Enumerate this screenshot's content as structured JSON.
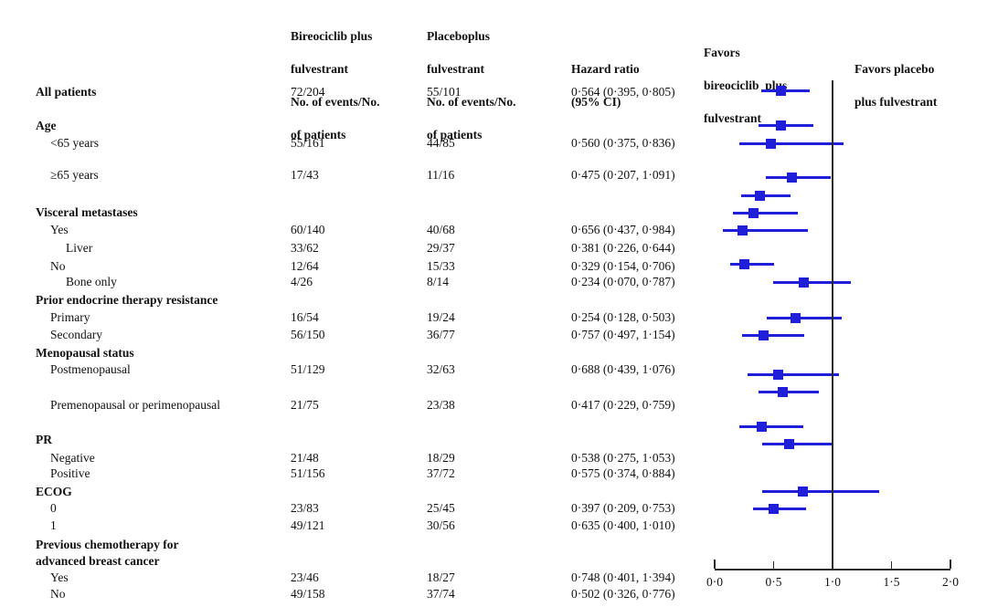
{
  "header": {
    "col_bireociclib": {
      "line1": "Bireociclib plus",
      "line2": "fulvestrant",
      "line3": "No. of events/No.",
      "line4": "of patients"
    },
    "col_placebo": {
      "line1": "Placeboplus",
      "line2": "fulvestrant",
      "line3": "No. of events/No.",
      "line4": "of patients"
    },
    "col_hazard": {
      "line1": "Hazard ratio",
      "line2": "(95% CI)"
    },
    "favors_left": {
      "line1": "Favors",
      "line2": "bireociclib  plus",
      "line3": "fulvestrant"
    },
    "favors_right": {
      "line1": "Favors placebo",
      "line2": "plus fulvestrant"
    }
  },
  "colors": {
    "marker_blue": "#1f1fd9",
    "axis": "#2b2b2b",
    "text": "#111111"
  },
  "chart_data": {
    "type": "forest",
    "title": "",
    "xlabel": "Hazard ratio (95% CI)",
    "xlim": [
      0,
      2
    ],
    "reference_line": 1.0,
    "grid": false,
    "axis_tick_values": [
      0,
      0.5,
      1.0,
      1.5,
      2.0
    ],
    "axis_tick_labels": [
      "0·0",
      "0·5",
      "1·0",
      "1·5",
      "2·0"
    ],
    "favors_left_label": "Favors bireociclib plus fulvestrant",
    "favors_right_label": "Favors placebo plus fulvestrant",
    "rows": [
      {
        "label": "All patients",
        "bold": true,
        "indent": 0,
        "events_bireociclib": "72/204",
        "events_placebo": "55/101",
        "hr_text": "0·564 (0·395, 0·805)",
        "hr": 0.564,
        "ci_low": 0.395,
        "ci_high": 0.805
      },
      {
        "label": "Age",
        "bold": true,
        "indent": 0
      },
      {
        "label": "<65 years",
        "bold": false,
        "indent": 1,
        "events_bireociclib": "55/161",
        "events_placebo": "44/85",
        "hr_text": "0·560 (0·375, 0·836)",
        "hr": 0.56,
        "ci_low": 0.375,
        "ci_high": 0.836
      },
      {
        "label": "≥65 years",
        "bold": false,
        "indent": 1,
        "events_bireociclib": "17/43",
        "events_placebo": "11/16",
        "hr_text": "0·475 (0·207, 1·091)",
        "hr": 0.475,
        "ci_low": 0.207,
        "ci_high": 1.091
      },
      {
        "label": "Visceral metastases",
        "bold": true,
        "indent": 0
      },
      {
        "label": "Yes",
        "bold": false,
        "indent": 1,
        "events_bireociclib": "60/140",
        "events_placebo": "40/68",
        "hr_text": "0·656 (0·437, 0·984)",
        "hr": 0.656,
        "ci_low": 0.437,
        "ci_high": 0.984
      },
      {
        "label": "Liver",
        "bold": false,
        "indent": 2,
        "events_bireociclib": "33/62",
        "events_placebo": "29/37",
        "hr_text": "0·381 (0·226, 0·644)",
        "hr": 0.381,
        "ci_low": 0.226,
        "ci_high": 0.644
      },
      {
        "label": "No",
        "bold": false,
        "indent": 1,
        "events_bireociclib": "12/64",
        "events_placebo": "15/33",
        "hr_text": "0·329 (0·154, 0·706)",
        "hr": 0.329,
        "ci_low": 0.154,
        "ci_high": 0.706
      },
      {
        "label": "Bone only",
        "bold": false,
        "indent": 2,
        "events_bireociclib": "4/26",
        "events_placebo": "8/14",
        "hr_text": "0·234 (0·070, 0·787)",
        "hr": 0.234,
        "ci_low": 0.07,
        "ci_high": 0.787
      },
      {
        "label": "Prior endocrine therapy resistance",
        "bold": true,
        "indent": 0
      },
      {
        "label": "Primary",
        "bold": false,
        "indent": 1,
        "events_bireociclib": "16/54",
        "events_placebo": "19/24",
        "hr_text": "0·254 (0·128, 0·503)",
        "hr": 0.254,
        "ci_low": 0.128,
        "ci_high": 0.503
      },
      {
        "label": "Secondary",
        "bold": false,
        "indent": 1,
        "events_bireociclib": "56/150",
        "events_placebo": "36/77",
        "hr_text": "0·757 (0·497, 1·154)",
        "hr": 0.757,
        "ci_low": 0.497,
        "ci_high": 1.154
      },
      {
        "label": "Menopausal status",
        "bold": true,
        "indent": 0
      },
      {
        "label": "Postmenopausal",
        "bold": false,
        "indent": 1,
        "events_bireociclib": "51/129",
        "events_placebo": "32/63",
        "hr_text": "0·688 (0·439, 1·076)",
        "hr": 0.688,
        "ci_low": 0.439,
        "ci_high": 1.076
      },
      {
        "label": "Premenopausal or perimenopausal",
        "bold": false,
        "indent": 1,
        "events_bireociclib": "21/75",
        "events_placebo": "23/38",
        "hr_text": "0·417 (0·229, 0·759)",
        "hr": 0.417,
        "ci_low": 0.229,
        "ci_high": 0.759
      },
      {
        "label": "PR",
        "bold": true,
        "indent": 0
      },
      {
        "label": "Negative",
        "bold": false,
        "indent": 1,
        "events_bireociclib": "21/48",
        "events_placebo": "18/29",
        "hr_text": "0·538 (0·275, 1·053)",
        "hr": 0.538,
        "ci_low": 0.275,
        "ci_high": 1.053
      },
      {
        "label": "Positive",
        "bold": false,
        "indent": 1,
        "events_bireociclib": "51/156",
        "events_placebo": "37/72",
        "hr_text": "0·575 (0·374, 0·884)",
        "hr": 0.575,
        "ci_low": 0.374,
        "ci_high": 0.884
      },
      {
        "label": "ECOG",
        "bold": true,
        "indent": 0
      },
      {
        "label": "0",
        "bold": false,
        "indent": 1,
        "events_bireociclib": "23/83",
        "events_placebo": "25/45",
        "hr_text": "0·397 (0·209, 0·753)",
        "hr": 0.397,
        "ci_low": 0.209,
        "ci_high": 0.753
      },
      {
        "label": "1",
        "bold": false,
        "indent": 1,
        "events_bireociclib": "49/121",
        "events_placebo": "30/56",
        "hr_text": "0·635 (0·400, 1·010)",
        "hr": 0.635,
        "ci_low": 0.4,
        "ci_high": 1.01
      },
      {
        "label": "Previous chemotherapy for\nadvanced breast cancer",
        "bold": true,
        "indent": 0
      },
      {
        "label": "Yes",
        "bold": false,
        "indent": 1,
        "events_bireociclib": "23/46",
        "events_placebo": "18/27",
        "hr_text": "0·748 (0·401, 1·394)",
        "hr": 0.748,
        "ci_low": 0.401,
        "ci_high": 1.394
      },
      {
        "label": "No",
        "bold": false,
        "indent": 1,
        "events_bireociclib": "49/158",
        "events_placebo": "37/74",
        "hr_text": "0·502 (0·326, 0·776)",
        "hr": 0.502,
        "ci_low": 0.326,
        "ci_high": 0.776
      }
    ]
  }
}
